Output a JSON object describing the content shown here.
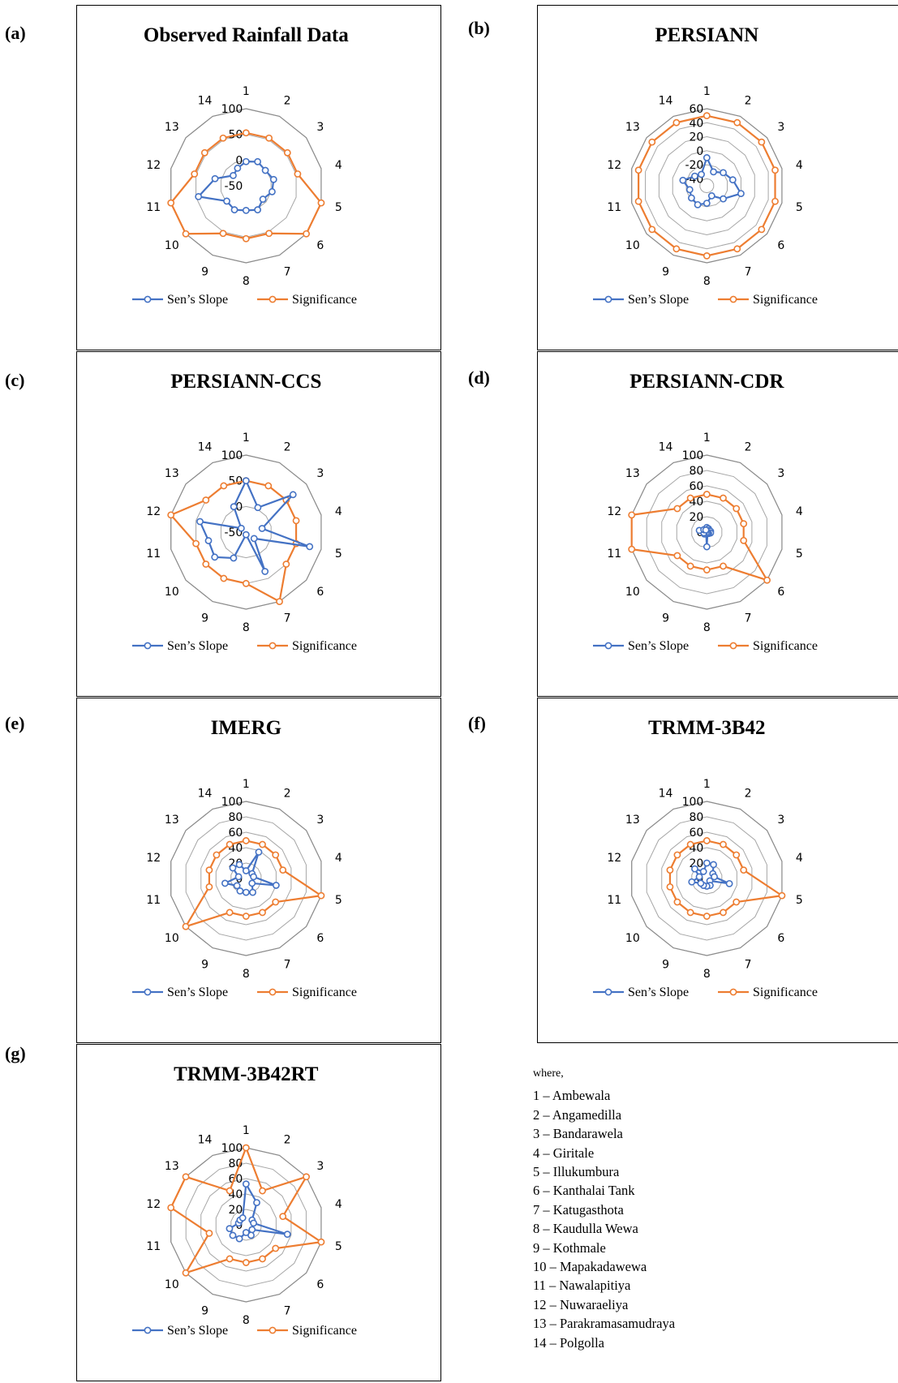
{
  "panel_labels": [
    "(a)",
    "(b)",
    "(c)",
    "(d)",
    "(e)",
    "(f)",
    "(g)"
  ],
  "legend": {
    "series1": "Sen’s Slope",
    "series2": "Significance"
  },
  "colors": {
    "series1": "#4472c4",
    "series2": "#ed7d31",
    "grid": "#a6a6a6"
  },
  "station_note": {
    "heading": "where,",
    "items": [
      "1 – Ambewala",
      "2 – Angamedilla",
      "3 – Bandarawela",
      "4 – Giritale",
      "5 – Illukumbura",
      "6 – Kanthalai Tank",
      "7 – Katugasthota",
      "8 – Kaudulla Wewa",
      "9 – Kothmale",
      "10 – Mapakadawewa",
      "11 – Nawalapitiya",
      "12 – Nuwaraeliya",
      "13 – Parakramasamudraya",
      "14 – Polgolla"
    ]
  },
  "chart_data": [
    {
      "type": "radar",
      "title": "Observed Rainfall Data",
      "categories": [
        "1",
        "2",
        "3",
        "4",
        "5",
        "6",
        "7",
        "8",
        "9",
        "10",
        "11",
        "12",
        "13",
        "14"
      ],
      "rlim": [
        -50,
        100
      ],
      "ticks": [
        -50,
        0,
        50,
        100
      ],
      "series": [
        {
          "name": "Sen’s Slope",
          "values": [
            -3,
            2,
            -2,
            5,
            2,
            -8,
            2,
            -2,
            2,
            -2,
            45,
            12,
            -18,
            -12
          ]
        },
        {
          "name": "Significance",
          "values": [
            53,
            53,
            53,
            53,
            100,
            100,
            53,
            53,
            53,
            100,
            100,
            53,
            53,
            53
          ]
        }
      ]
    },
    {
      "type": "radar",
      "title": "PERSIANN",
      "categories": [
        "1",
        "2",
        "3",
        "4",
        "5",
        "6",
        "7",
        "8",
        "9",
        "10",
        "11",
        "12",
        "13",
        "14"
      ],
      "rlim": [
        -50,
        60
      ],
      "ticks": [
        -40,
        -20,
        0,
        20,
        40,
        60
      ],
      "series": [
        {
          "name": "Sen’s Slope",
          "values": [
            -10,
            -28,
            -20,
            -12,
            0,
            -20,
            -34,
            -25,
            -20,
            -22,
            -25,
            -15,
            -28,
            -32
          ]
        },
        {
          "name": "Significance",
          "values": [
            50,
            50,
            50,
            50,
            50,
            50,
            50,
            50,
            50,
            50,
            50,
            50,
            50,
            50
          ]
        }
      ]
    },
    {
      "type": "radar",
      "title": "PERSIANN-CCS",
      "categories": [
        "1",
        "2",
        "3",
        "4",
        "5",
        "6",
        "7",
        "8",
        "9",
        "10",
        "11",
        "12",
        "13",
        "14"
      ],
      "rlim": [
        -50,
        100
      ],
      "ticks": [
        -50,
        0,
        50,
        100
      ],
      "series": [
        {
          "name": "Sen’s Slope",
          "values": [
            50,
            3,
            67,
            -18,
            77,
            -30,
            35,
            -45,
            6,
            28,
            25,
            42,
            -38,
            5
          ]
        },
        {
          "name": "Significance",
          "values": [
            50,
            50,
            50,
            50,
            50,
            50,
            100,
            50,
            50,
            50,
            50,
            100,
            50,
            50
          ]
        }
      ]
    },
    {
      "type": "radar",
      "title": "PERSIANN-CDR",
      "categories": [
        "1",
        "2",
        "3",
        "4",
        "5",
        "6",
        "7",
        "8",
        "9",
        "10",
        "11",
        "12",
        "13",
        "14"
      ],
      "rlim": [
        0,
        100
      ],
      "ticks": [
        0,
        20,
        40,
        60,
        80,
        100
      ],
      "series": [
        {
          "name": "Sen’s Slope",
          "values": [
            6,
            5,
            4,
            5,
            5,
            3,
            2,
            19,
            2,
            4,
            4,
            10,
            5,
            3
          ]
        },
        {
          "name": "Significance",
          "values": [
            49,
            49,
            49,
            49,
            49,
            100,
            49,
            49,
            49,
            49,
            100,
            100,
            49,
            49
          ]
        }
      ]
    },
    {
      "type": "radar",
      "title": "IMERG",
      "categories": [
        "1",
        "2",
        "3",
        "4",
        "5",
        "6",
        "7",
        "8",
        "9",
        "10",
        "11",
        "12",
        "13",
        "14"
      ],
      "rlim": [
        0,
        100
      ],
      "ticks": [
        0,
        20,
        40,
        60,
        80,
        100
      ],
      "series": [
        {
          "name": "Sen’s Slope",
          "values": [
            10,
            38,
            10,
            10,
            40,
            10,
            20,
            18,
            18,
            15,
            28,
            10,
            22,
            20
          ]
        },
        {
          "name": "Significance",
          "values": [
            49,
            49,
            49,
            49,
            100,
            49,
            49,
            49,
            49,
            100,
            49,
            49,
            49,
            49
          ]
        }
      ]
    },
    {
      "type": "radar",
      "title": "TRMM-3B42",
      "categories": [
        "1",
        "2",
        "3",
        "4",
        "5",
        "6",
        "7",
        "8",
        "9",
        "10",
        "11",
        "12",
        "13",
        "14"
      ],
      "rlim": [
        0,
        100
      ],
      "ticks": [
        0,
        20,
        40,
        60,
        80,
        100
      ],
      "series": [
        {
          "name": "Sen’s Slope",
          "values": [
            20,
            20,
            10,
            10,
            30,
            5,
            10,
            10,
            10,
            10,
            20,
            10,
            20,
            10
          ]
        },
        {
          "name": "Significance",
          "values": [
            49,
            49,
            49,
            49,
            100,
            49,
            49,
            49,
            49,
            49,
            49,
            49,
            49,
            49
          ]
        }
      ]
    },
    {
      "type": "radar",
      "title": "TRMM-3B42RT",
      "categories": [
        "1",
        "2",
        "3",
        "4",
        "5",
        "6",
        "7",
        "8",
        "9",
        "10",
        "11",
        "12",
        "13",
        "14"
      ],
      "rlim": [
        0,
        100
      ],
      "ticks": [
        0,
        20,
        40,
        60,
        80,
        100
      ],
      "series": [
        {
          "name": "Sen’s Slope",
          "values": [
            53,
            32,
            10,
            10,
            55,
            10,
            15,
            10,
            20,
            22,
            22,
            10,
            10,
            10
          ]
        },
        {
          "name": "Significance",
          "values": [
            100,
            49,
            100,
            49,
            100,
            49,
            49,
            49,
            49,
            100,
            49,
            100,
            100,
            49
          ]
        }
      ]
    }
  ]
}
